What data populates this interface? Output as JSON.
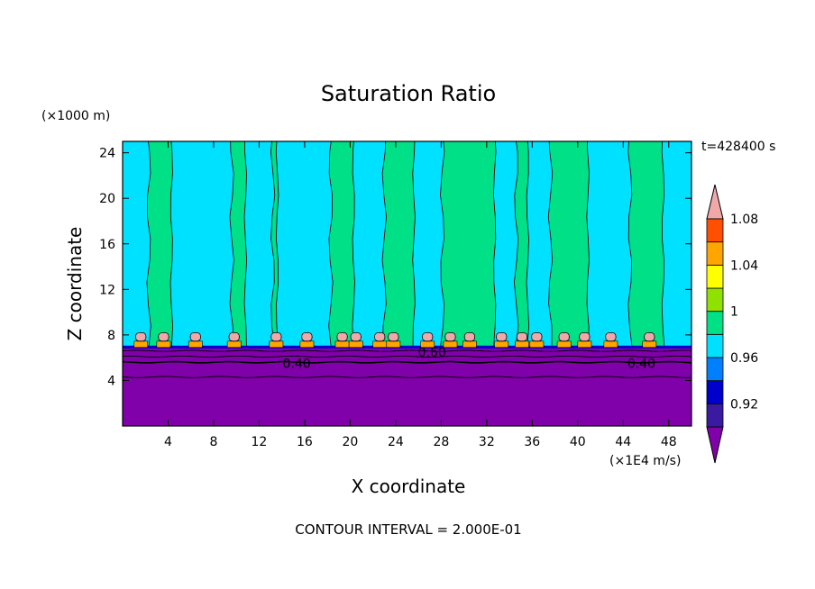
{
  "chart_data": {
    "type": "heatmap",
    "title": "Saturation Ratio",
    "time_label": "t=428400 s",
    "z_unit": "(×1000 m)",
    "x_unit": "(×1E4 m/s)",
    "xlabel": "X coordinate",
    "ylabel": "Z coordinate",
    "footer": "CONTOUR INTERVAL = 2.000E-01",
    "xlim": [
      0,
      50
    ],
    "ylim": [
      0,
      25
    ],
    "x_ticks": [
      4,
      8,
      12,
      16,
      20,
      24,
      28,
      32,
      36,
      40,
      44,
      48
    ],
    "y_ticks": [
      4,
      8,
      12,
      16,
      20,
      24
    ],
    "colorbar": {
      "labels": [
        "1.08",
        "1.04",
        "1",
        "0.96",
        "0.92"
      ],
      "levels": [
        0.9,
        0.92,
        0.94,
        0.96,
        0.98,
        1.0,
        1.02,
        1.04,
        1.06,
        1.08,
        1.1
      ],
      "colors": [
        "#8000aa",
        "#3a1aa0",
        "#0000cd",
        "#0080ff",
        "#00e0ff",
        "#00e087",
        "#90e000",
        "#ffff00",
        "#ffa500",
        "#ff5000",
        "#f0a8a8"
      ]
    },
    "contour_labels": [
      {
        "text": "0.40",
        "x": 15.3,
        "z": 5.5
      },
      {
        "text": "0.60",
        "x": 27.2,
        "z": 6.5
      },
      {
        "text": "0.40",
        "x": 45.6,
        "z": 5.5
      }
    ],
    "regions": {
      "dry_layer_top_z": 6.9,
      "background_value": 0.99,
      "column_value": 1.01,
      "columns_x": [
        [
          2.3,
          4.3
        ],
        [
          9.6,
          10.8
        ],
        [
          13.2,
          13.6
        ],
        [
          18.3,
          20.3
        ],
        [
          23.0,
          25.6
        ],
        [
          28.1,
          32.7
        ],
        [
          34.6,
          35.6
        ],
        [
          37.6,
          40.9
        ],
        [
          44.6,
          47.5
        ]
      ],
      "caps_x": [
        1.6,
        3.6,
        6.4,
        9.8,
        13.5,
        16.2,
        19.3,
        20.5,
        22.6,
        23.8,
        26.8,
        28.8,
        30.5,
        33.3,
        35.1,
        36.4,
        38.8,
        40.6,
        42.9,
        46.3
      ]
    }
  }
}
